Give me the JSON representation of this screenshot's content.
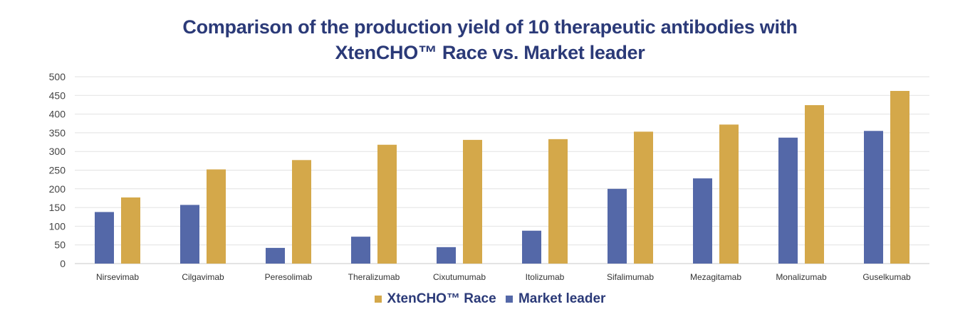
{
  "chart_data": {
    "type": "bar",
    "title_line1": "Comparison of the production yield of 10 therapeutic antibodies with",
    "title_line2": "XtenCHO™ Race vs.  Market leader",
    "categories": [
      "Nirsevimab",
      "Cilgavimab",
      "Peresolimab",
      "Theralizumab",
      "Cixutumumab",
      "Itolizumab",
      "Sifalimumab",
      "Mezagitamab",
      "Monalizumab",
      "Guselkumab"
    ],
    "series": [
      {
        "name": "Market leader",
        "color": "#5468a8",
        "values": [
          138,
          157,
          42,
          72,
          44,
          88,
          200,
          228,
          337,
          355
        ]
      },
      {
        "name": "XtenCHO™ Race",
        "color": "#d4a84a",
        "values": [
          177,
          252,
          277,
          318,
          331,
          333,
          353,
          372,
          424,
          462
        ]
      }
    ],
    "legend_order": [
      1,
      0
    ],
    "yticks": [
      "0",
      "50",
      "100",
      "150",
      "200",
      "250",
      "300",
      "350",
      "400",
      "450",
      "500"
    ],
    "ylim": [
      0,
      500
    ],
    "grid": true,
    "legend_position": "bottom"
  }
}
